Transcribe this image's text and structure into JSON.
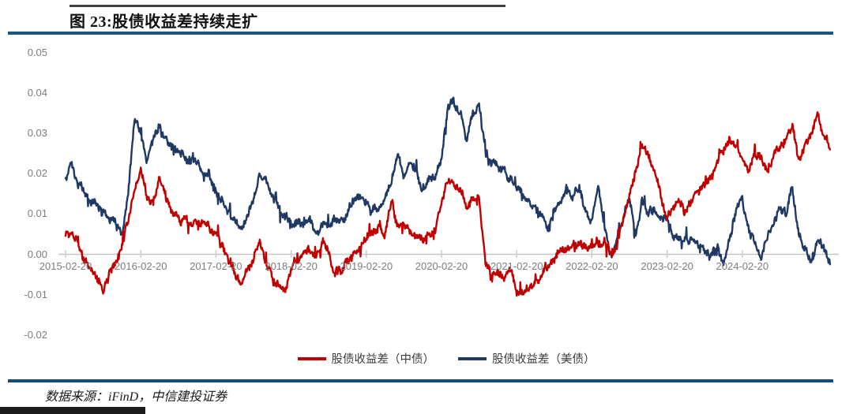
{
  "figure": {
    "title": "图 23:股债收益差持续走扩",
    "source": "数据来源：iFinD，中信建投证券"
  },
  "colors": {
    "rule_blue": "#1b5486",
    "axis_gray": "#c6c6c6",
    "tick_label_gray": "#7d7d7d",
    "series_red": "#C00000",
    "series_navy": "#1F3864"
  },
  "chart_data": {
    "type": "line",
    "title": "图 23:股债收益差持续走扩",
    "x_start": "2015-02",
    "x_step_months": 1,
    "x_tick_months": [
      0,
      12,
      24,
      36,
      48,
      60,
      72,
      84,
      96,
      108
    ],
    "x_tick_labels": [
      "2015-02-20",
      "2016-02-20",
      "2017-02-20",
      "2018-02-20",
      "2019-02-20",
      "2020-02-20",
      "2021-02-20",
      "2022-02-20",
      "2023-02-20",
      "2024-02-20"
    ],
    "y_tick_labels": [
      "0.05",
      "0.04",
      "0.03",
      "0.02",
      "0.01",
      "0.00",
      "-0.01",
      "-0.02"
    ],
    "y_tick_values": [
      0.05,
      0.04,
      0.03,
      0.02,
      0.01,
      0.0,
      -0.01,
      -0.02
    ],
    "ylim": [
      -0.025,
      0.052
    ],
    "grid": "zero-axis line only, year ticks",
    "legend_position": "bottom-center",
    "series": [
      {
        "name": "股债收益差（中债）",
        "color": "#C00000",
        "monthly_values": [
          0.005,
          0.0065,
          0.002,
          -0.001,
          -0.003,
          -0.006,
          -0.01,
          -0.004,
          -0.0015,
          0.002,
          0.009,
          0.016,
          0.0215,
          0.014,
          0.013,
          0.0185,
          0.014,
          0.01,
          0.009,
          0.0085,
          0.0075,
          0.008,
          0.0075,
          0.0065,
          0.005,
          0.002,
          -0.002,
          -0.005,
          -0.007,
          -0.004,
          -0.001,
          0.0045,
          -0.001,
          -0.006,
          -0.0075,
          -0.0095,
          -0.0035,
          -0.002,
          0.0,
          0.001,
          0.0,
          0.003,
          0.0,
          -0.0035,
          -0.0045,
          -0.0015,
          0.0,
          0.002,
          0.004,
          0.005,
          0.0065,
          0.005,
          0.0135,
          0.008,
          0.0075,
          0.006,
          0.005,
          0.0045,
          0.0055,
          0.006,
          0.012,
          0.0185,
          0.017,
          0.0165,
          0.0115,
          0.014,
          0.0135,
          -0.003,
          -0.005,
          -0.0045,
          -0.006,
          -0.004,
          -0.008,
          -0.0095,
          -0.0085,
          -0.007,
          -0.005,
          -0.003,
          -0.0005,
          0.001,
          0.002,
          0.0015,
          0.002,
          0.0015,
          0.002,
          0.003,
          0.0045,
          0.0005,
          0.002,
          0.009,
          0.014,
          0.021,
          0.0275,
          0.025,
          0.021,
          0.015,
          0.01,
          0.012,
          0.0125,
          0.01,
          0.013,
          0.016,
          0.017,
          0.0195,
          0.0225,
          0.026,
          0.0295,
          0.027,
          0.0235,
          0.021,
          0.0245,
          0.024,
          0.0205,
          0.025,
          0.026,
          0.029,
          0.031,
          0.0225,
          0.027,
          0.03,
          0.035,
          0.0305,
          0.026
        ]
      },
      {
        "name": "股债收益差（美债）",
        "color": "#1F3864",
        "monthly_values": [
          0.019,
          0.022,
          0.018,
          0.016,
          0.014,
          0.012,
          0.011,
          0.009,
          0.008,
          0.0035,
          0.015,
          0.0335,
          0.03,
          0.024,
          0.028,
          0.0325,
          0.028,
          0.026,
          0.0255,
          0.025,
          0.023,
          0.022,
          0.02,
          0.0195,
          0.016,
          0.013,
          0.01,
          0.0085,
          0.006,
          0.009,
          0.014,
          0.02,
          0.018,
          0.0155,
          0.012,
          0.01,
          0.0075,
          0.008,
          0.0065,
          0.0085,
          0.006,
          0.0075,
          0.007,
          0.0085,
          0.008,
          0.01,
          0.013,
          0.014,
          0.012,
          0.011,
          0.0115,
          0.013,
          0.018,
          0.026,
          0.019,
          0.022,
          0.021,
          0.016,
          0.018,
          0.02,
          0.024,
          0.036,
          0.0375,
          0.035,
          0.0285,
          0.034,
          0.036,
          0.026,
          0.023,
          0.022,
          0.02,
          0.018,
          0.0165,
          0.015,
          0.013,
          0.012,
          0.01,
          0.0065,
          0.01,
          0.013,
          0.017,
          0.014,
          0.016,
          0.01,
          0.0075,
          0.0165,
          0.006,
          -0.001,
          0.004,
          0.009,
          0.0145,
          0.004,
          0.0135,
          0.01,
          0.011,
          0.009,
          0.008,
          0.005,
          0.004,
          0.003,
          0.005,
          0.002,
          0.001,
          0.0,
          0.002,
          -0.002,
          0.004,
          0.01,
          0.0125,
          0.007,
          0.003,
          -0.0005,
          0.004,
          0.008,
          0.0115,
          0.01,
          0.0165,
          0.004,
          0.001,
          -0.003,
          0.0035,
          0.002,
          -0.0025
        ]
      }
    ]
  }
}
